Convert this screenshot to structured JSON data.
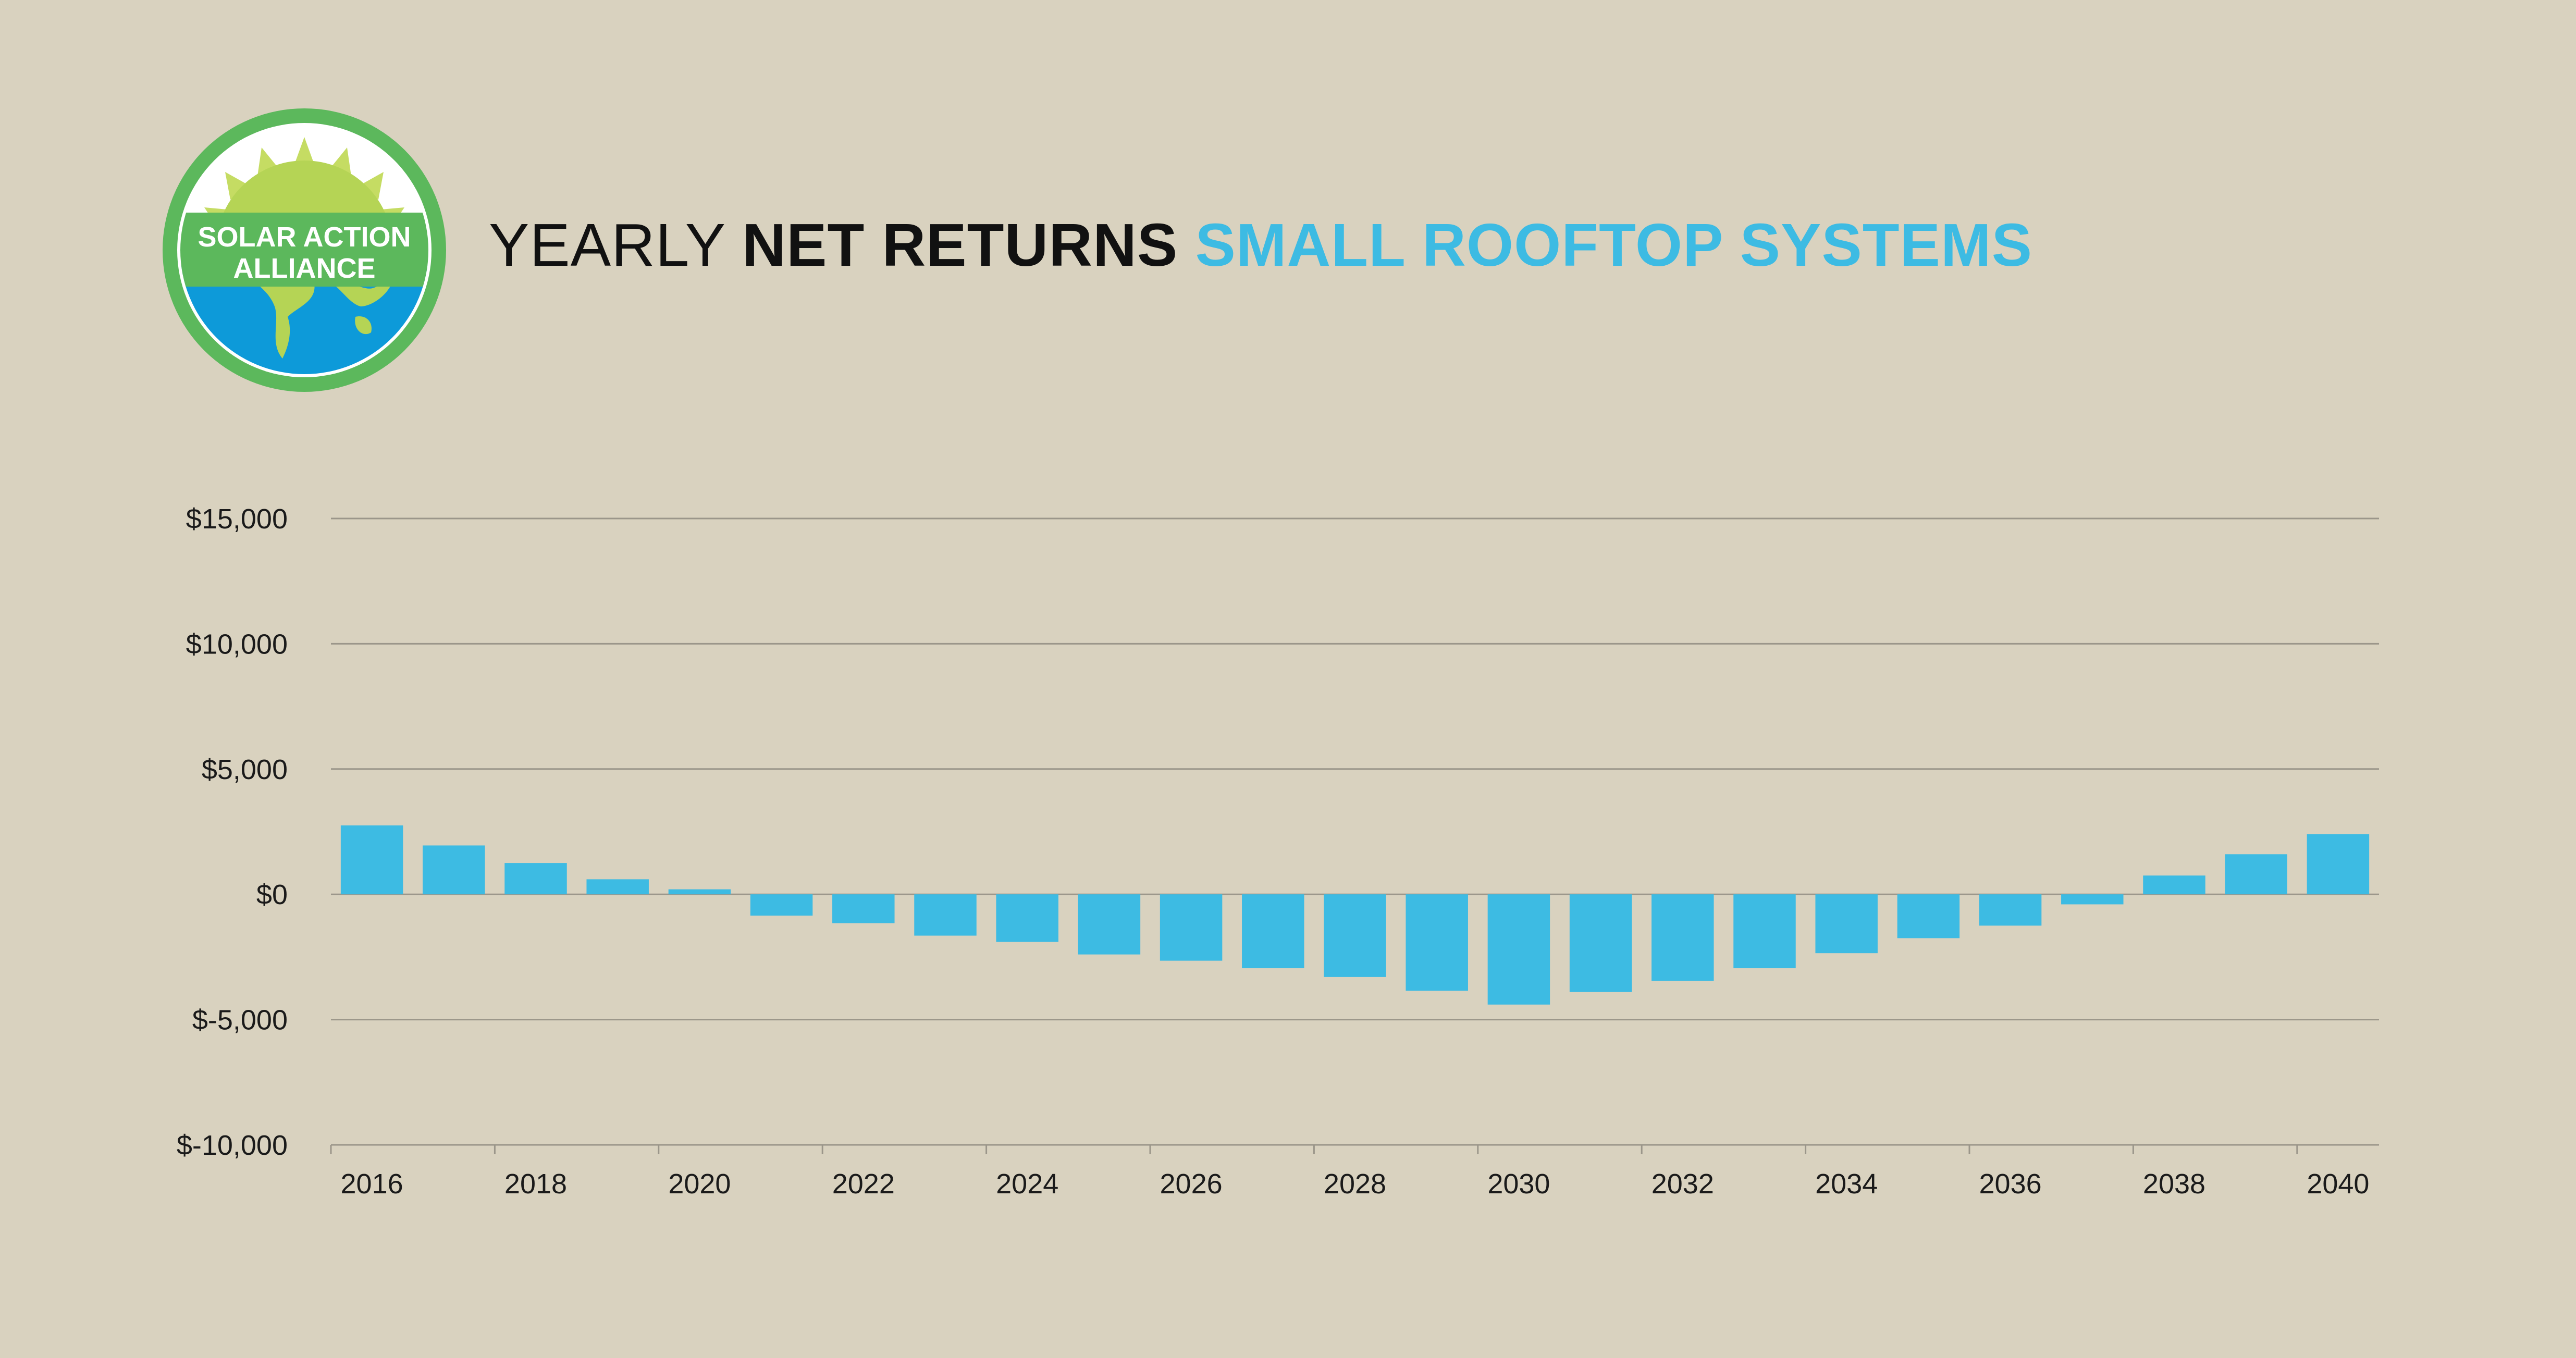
{
  "title": {
    "part1": "YEARLY ",
    "part2": "NET RETURNS",
    "part3": " SMALL ROOFTOP SYSTEMS"
  },
  "logo": {
    "line1": "SOLAR ACTION",
    "line2": "ALLIANCE"
  },
  "colors": {
    "background": "#d9d2bf",
    "bar": "#3dbbe3",
    "grid": "#9b968a",
    "logo_green": "#5cb85c",
    "logo_lime": "#b5d455",
    "logo_blue": "#0d9ad9"
  },
  "chart_data": {
    "type": "bar",
    "categories": [
      "2016",
      "2017",
      "2018",
      "2019",
      "2020",
      "2021",
      "2022",
      "2023",
      "2024",
      "2025",
      "2026",
      "2027",
      "2028",
      "2029",
      "2030",
      "2031",
      "2032",
      "2033",
      "2034",
      "2035",
      "2036",
      "2037",
      "2038",
      "2039",
      "2040"
    ],
    "values": [
      2750,
      1950,
      1250,
      600,
      200,
      -850,
      -1150,
      -1650,
      -1900,
      -2400,
      -2650,
      -2950,
      -3300,
      -3850,
      -4400,
      -3900,
      -3450,
      -2950,
      -2350,
      -1750,
      -1250,
      -400,
      750,
      1600,
      2400
    ],
    "x_tick_labels": [
      "2016",
      "2018",
      "2020",
      "2022",
      "2024",
      "2026",
      "2028",
      "2030",
      "2032",
      "2034",
      "2036",
      "2038",
      "2040"
    ],
    "y_ticks": [
      15000,
      10000,
      5000,
      0,
      -5000,
      -10000
    ],
    "y_tick_labels": [
      "$15,000",
      "$10,000",
      "$5,000",
      "$0",
      "$-5,000",
      "$-10,000"
    ],
    "ylim": [
      -10000,
      15000
    ],
    "title": "YEARLY NET RETURNS SMALL ROOFTOP SYSTEMS",
    "xlabel": "",
    "ylabel": "",
    "grid": true,
    "legend": "none"
  }
}
